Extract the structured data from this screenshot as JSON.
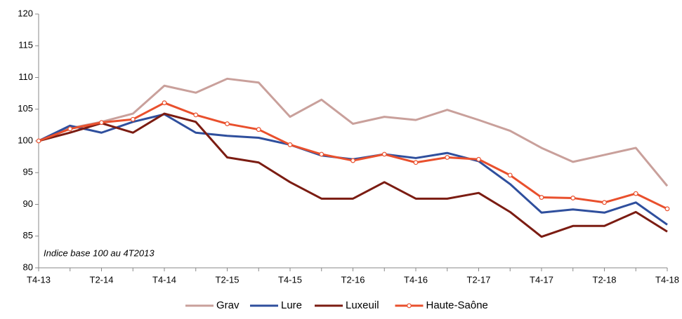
{
  "chart_data": {
    "type": "line",
    "annotation": "Indice base 100 au 4T2013",
    "categories": [
      "T4-13",
      null,
      "T2-14",
      null,
      "T4-14",
      null,
      "T2-15",
      null,
      "T4-15",
      null,
      "T2-16",
      null,
      "T4-16",
      null,
      "T2-17",
      null,
      "T4-17",
      null,
      "T2-18",
      null,
      "T4-18"
    ],
    "ylim": [
      80,
      120
    ],
    "yticks": [
      80,
      85,
      90,
      95,
      100,
      105,
      110,
      115,
      120
    ],
    "grid": false,
    "legend": "bottom",
    "series": [
      {
        "name": "Grav",
        "color": "#c9a09b",
        "markers": false,
        "values": [
          100,
          102,
          103,
          104.3,
          108.7,
          107.6,
          109.8,
          109.2,
          103.8,
          106.5,
          102.7,
          103.8,
          103.3,
          104.9,
          103.3,
          101.6,
          98.9,
          96.7,
          97.8,
          98.9,
          92.9
        ]
      },
      {
        "name": "Lure",
        "color": "#2f4f9d",
        "markers": false,
        "values": [
          100,
          102.4,
          101.3,
          103,
          104.2,
          101.3,
          100.8,
          100.5,
          99.4,
          97.7,
          97.1,
          97.9,
          97.3,
          98.1,
          96.8,
          93.2,
          88.7,
          89.2,
          88.7,
          90.3,
          86.8
        ]
      },
      {
        "name": "Luxeuil",
        "color": "#7b1c12",
        "markers": false,
        "values": [
          100,
          101.3,
          102.8,
          101.3,
          104.3,
          103,
          97.4,
          96.6,
          93.5,
          90.9,
          90.9,
          93.5,
          90.9,
          90.9,
          91.8,
          88.8,
          84.9,
          86.6,
          86.6,
          88.8,
          85.7
        ]
      },
      {
        "name": "Haute-Saône",
        "color": "#e9502d",
        "markers": true,
        "values": [
          100,
          101.9,
          102.9,
          103.4,
          106,
          104.1,
          102.7,
          101.8,
          99.4,
          97.9,
          96.9,
          97.9,
          96.6,
          97.4,
          97.1,
          94.6,
          91.1,
          91,
          90.3,
          91.7,
          89.3
        ]
      }
    ]
  }
}
